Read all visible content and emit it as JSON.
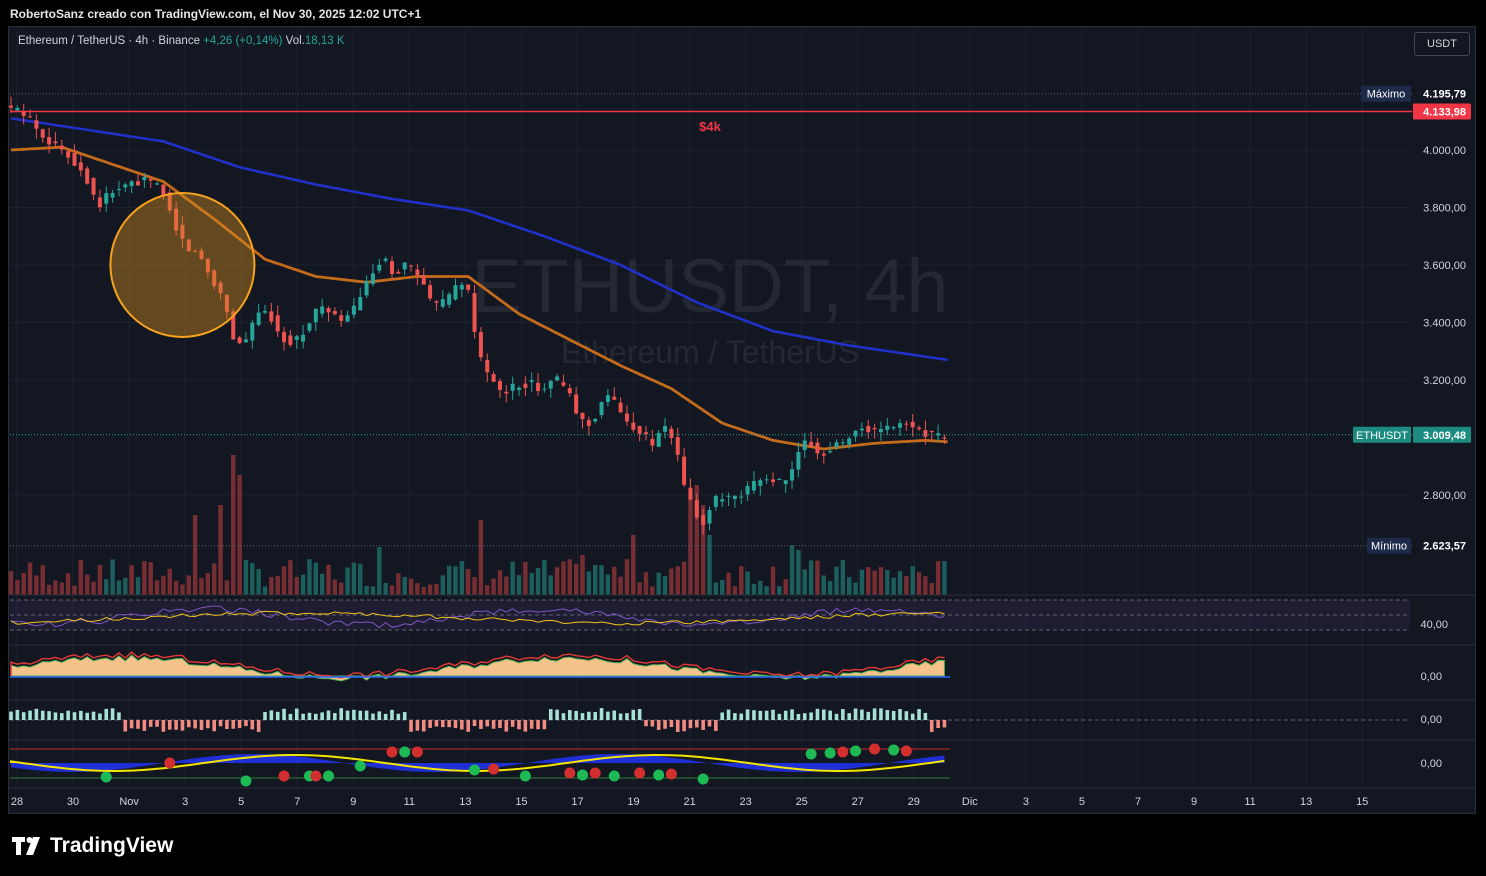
{
  "header": {
    "attribution": "RobertoSanz creado con TradingView.com, el Nov 30, 2025 12:02 UTC+1"
  },
  "legend": {
    "symbol": "Ethereum / TetherUS · 4h · Binance",
    "change": "+4,26 (+0,14%)",
    "volume_label": "Vol.",
    "volume_value": "18,13 K"
  },
  "currency_button": "USDT",
  "watermark": {
    "line1": "ETHUSDT, 4h",
    "line2": "Ethereum / TetherUS"
  },
  "annotation": {
    "text": "$4k",
    "color": "#f23645"
  },
  "brand": {
    "name": "TradingView",
    "icon": "tradingview-logo-icon"
  },
  "chart_data": {
    "type": "candlestick",
    "symbol": "ETHUSDT",
    "timeframe": "4h",
    "colors": {
      "up": "#26a69a",
      "down": "#ef5350",
      "ma_fast": "#c46a1b",
      "ma_slow": "#2130c8",
      "level": "#f23645",
      "background": "#131722"
    },
    "y_ticks": [
      "4.000,00",
      "3.800,00",
      "3.600,00",
      "3.400,00",
      "3.200,00",
      "2.800,00"
    ],
    "y_tick_values": [
      4000,
      3800,
      3600,
      3400,
      3200,
      2800
    ],
    "ylim": [
      2580,
      4240
    ],
    "x_ticks": [
      "28",
      "30",
      "Nov",
      "3",
      "5",
      "7",
      "9",
      "11",
      "13",
      "15",
      "17",
      "19",
      "21",
      "23",
      "25",
      "27",
      "29",
      "Dic",
      "3",
      "5",
      "7",
      "9",
      "11",
      "13",
      "15"
    ],
    "price_labels": {
      "max_label": "Máximo",
      "max_value": "4.195,79",
      "max_price": 4195.79,
      "level_value": "4.133,98",
      "level_price": 4133.98,
      "last_label": "ETHUSDT",
      "last_value": "3.009,48",
      "last_price": 3009.48,
      "min_label": "Mínimo",
      "min_value": "2.623,57",
      "min_price": 2623.57
    },
    "close_path": [
      [
        0,
        4150
      ],
      [
        3,
        4120
      ],
      [
        6,
        4040
      ],
      [
        9,
        3990
      ],
      [
        11,
        3950
      ],
      [
        13,
        3880
      ],
      [
        14,
        3800
      ],
      [
        16,
        3850
      ],
      [
        19,
        3880
      ],
      [
        22,
        3895
      ],
      [
        24,
        3870
      ],
      [
        26,
        3760
      ],
      [
        28,
        3660
      ],
      [
        30,
        3640
      ],
      [
        32,
        3560
      ],
      [
        34,
        3480
      ],
      [
        35.5,
        3350
      ],
      [
        37,
        3320
      ],
      [
        39,
        3420
      ],
      [
        41,
        3440
      ],
      [
        43,
        3350
      ],
      [
        45,
        3330
      ],
      [
        47,
        3380
      ],
      [
        49,
        3460
      ],
      [
        51,
        3420
      ],
      [
        53,
        3410
      ],
      [
        55,
        3460
      ],
      [
        57,
        3560
      ],
      [
        59,
        3620
      ],
      [
        61,
        3570
      ],
      [
        63,
        3610
      ],
      [
        65,
        3540
      ],
      [
        67,
        3460
      ],
      [
        69,
        3470
      ],
      [
        71,
        3540
      ],
      [
        72.5,
        3500
      ],
      [
        74,
        3300
      ],
      [
        76,
        3200
      ],
      [
        78,
        3150
      ],
      [
        80,
        3180
      ],
      [
        82,
        3190
      ],
      [
        84,
        3170
      ],
      [
        86,
        3210
      ],
      [
        88,
        3170
      ],
      [
        90,
        3060
      ],
      [
        92,
        3050
      ],
      [
        94,
        3150
      ],
      [
        96,
        3110
      ],
      [
        98,
        3040
      ],
      [
        100,
        3020
      ],
      [
        101.5,
        2960
      ],
      [
        103,
        3050
      ],
      [
        105,
        2980
      ],
      [
        106.5,
        2830
      ],
      [
        108,
        2750
      ],
      [
        109.5,
        2700
      ],
      [
        111,
        2780
      ],
      [
        113,
        2790
      ],
      [
        115,
        2780
      ],
      [
        117,
        2830
      ],
      [
        119,
        2860
      ],
      [
        121,
        2850
      ],
      [
        123,
        2840
      ],
      [
        124.5,
        2960
      ],
      [
        126,
        2990
      ],
      [
        128,
        2940
      ],
      [
        130,
        2970
      ],
      [
        132,
        2990
      ],
      [
        134,
        3040
      ],
      [
        136,
        3020
      ],
      [
        138,
        3030
      ],
      [
        140,
        3040
      ],
      [
        142,
        3050
      ],
      [
        144,
        3020
      ],
      [
        146,
        3010
      ],
      [
        147.5,
        3009
      ]
    ],
    "ma_fast": [
      [
        0,
        4000
      ],
      [
        8,
        4010
      ],
      [
        16,
        3950
      ],
      [
        24,
        3890
      ],
      [
        32,
        3760
      ],
      [
        40,
        3620
      ],
      [
        48,
        3560
      ],
      [
        56,
        3540
      ],
      [
        64,
        3560
      ],
      [
        72,
        3560
      ],
      [
        80,
        3430
      ],
      [
        88,
        3340
      ],
      [
        96,
        3250
      ],
      [
        104,
        3170
      ],
      [
        112,
        3050
      ],
      [
        120,
        2990
      ],
      [
        128,
        2960
      ],
      [
        136,
        2980
      ],
      [
        144,
        2990
      ],
      [
        147.5,
        2985
      ]
    ],
    "ma_slow": [
      [
        0,
        4110
      ],
      [
        12,
        4070
      ],
      [
        24,
        4030
      ],
      [
        36,
        3940
      ],
      [
        48,
        3880
      ],
      [
        60,
        3830
      ],
      [
        72,
        3790
      ],
      [
        84,
        3700
      ],
      [
        96,
        3600
      ],
      [
        108,
        3470
      ],
      [
        120,
        3370
      ],
      [
        132,
        3320
      ],
      [
        147.5,
        3270
      ]
    ],
    "highlight_circle": {
      "x": 27,
      "y": 3600
    },
    "panes": [
      {
        "name": "oscillator-1",
        "tick": "40,00"
      },
      {
        "name": "oscillator-2",
        "tick": "0,00"
      },
      {
        "name": "oscillator-3",
        "tick": "0,00"
      },
      {
        "name": "oscillator-4",
        "tick": "0,00"
      }
    ]
  }
}
